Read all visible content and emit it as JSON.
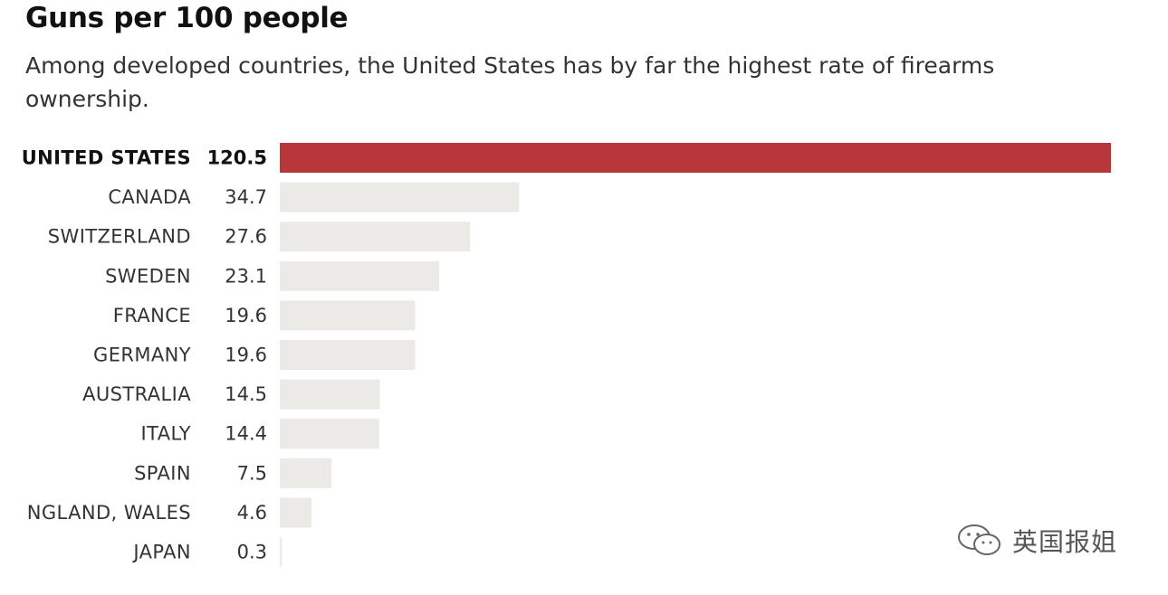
{
  "chart_data": {
    "type": "bar",
    "orientation": "horizontal",
    "title": "Guns per 100 people",
    "subtitle": "Among developed countries, the United States has by far the highest rate of firearms ownership.",
    "categories": [
      "UNITED STATES",
      "CANADA",
      "SWITZERLAND",
      "SWEDEN",
      "FRANCE",
      "GERMANY",
      "AUSTRALIA",
      "ITALY",
      "SPAIN",
      "NGLAND, WALES",
      "JAPAN"
    ],
    "values": [
      120.5,
      34.7,
      27.6,
      23.1,
      19.6,
      19.6,
      14.5,
      14.4,
      7.5,
      4.6,
      0.3
    ],
    "value_labels": [
      "120.5",
      "34.7",
      "27.6",
      "23.1",
      "19.6",
      "19.6",
      "14.5",
      "14.4",
      "7.5",
      "4.6",
      "0.3"
    ],
    "highlight_index": 0,
    "xlim": [
      0,
      120.5
    ],
    "grid": false,
    "legend": "none",
    "colors": {
      "highlight": "#b8373a",
      "bar": "#ebeae7"
    }
  },
  "watermark": {
    "icon": "wechat-icon",
    "text": "英国报姐"
  }
}
